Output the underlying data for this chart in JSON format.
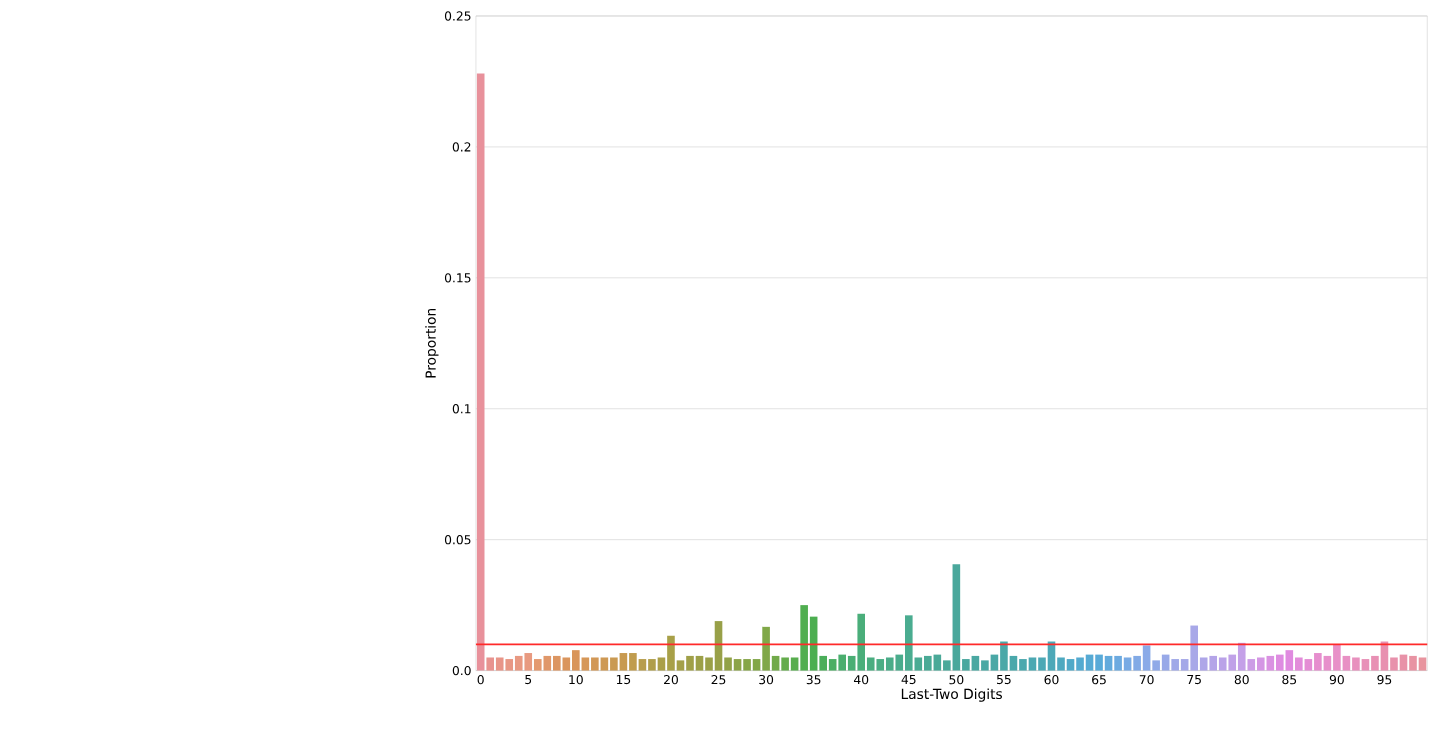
{
  "chart_data": {
    "type": "bar",
    "xlabel": "Last-Two Digits",
    "ylabel": "Proportion",
    "categories": [
      "0",
      null,
      null,
      null,
      null,
      "5",
      null,
      null,
      null,
      null,
      "10",
      null,
      null,
      null,
      null,
      "15",
      null,
      null,
      null,
      null,
      "20",
      null,
      null,
      null,
      null,
      "25",
      null,
      null,
      null,
      null,
      "30",
      null,
      null,
      null,
      null,
      "35",
      null,
      null,
      null,
      null,
      "40",
      null,
      null,
      null,
      null,
      "45",
      null,
      null,
      null,
      null,
      "50",
      null,
      null,
      null,
      null,
      "55",
      null,
      null,
      null,
      null,
      "60",
      null,
      null,
      null,
      null,
      "65",
      null,
      null,
      null,
      null,
      "70",
      null,
      null,
      null,
      null,
      "75",
      null,
      null,
      null,
      null,
      "80",
      null,
      null,
      null,
      null,
      "85",
      null,
      null,
      null,
      null,
      "90",
      null,
      null,
      null,
      null,
      "95",
      null,
      null,
      null,
      null
    ],
    "values": [
      0.228,
      0.005,
      0.005,
      0.0044,
      0.0056,
      0.0067,
      0.0044,
      0.0056,
      0.0056,
      0.005,
      0.0078,
      0.005,
      0.005,
      0.005,
      0.005,
      0.0067,
      0.0067,
      0.0044,
      0.0044,
      0.005,
      0.0133,
      0.0039,
      0.0056,
      0.0056,
      0.005,
      0.0189,
      0.005,
      0.0044,
      0.0044,
      0.0044,
      0.0167,
      0.0056,
      0.005,
      0.005,
      0.025,
      0.0206,
      0.0056,
      0.0044,
      0.0061,
      0.0056,
      0.0217,
      0.005,
      0.0044,
      0.005,
      0.0061,
      0.0211,
      0.005,
      0.0056,
      0.0061,
      0.0039,
      0.0406,
      0.0044,
      0.0056,
      0.0039,
      0.0061,
      0.0111,
      0.0056,
      0.0044,
      0.005,
      0.005,
      0.0111,
      0.005,
      0.0044,
      0.005,
      0.0061,
      0.0061,
      0.0056,
      0.0056,
      0.005,
      0.0056,
      0.0096,
      0.0039,
      0.0061,
      0.0044,
      0.0044,
      0.0172,
      0.005,
      0.0056,
      0.005,
      0.0061,
      0.0106,
      0.0044,
      0.005,
      0.0056,
      0.0061,
      0.0078,
      0.005,
      0.0044,
      0.0067,
      0.0056,
      0.01,
      0.0056,
      0.005,
      0.0044,
      0.0056,
      0.0111,
      0.005,
      0.0061,
      0.0056,
      0.005
    ],
    "colors": [
      "#e8919b",
      "#e8938f",
      "#e89588",
      "#e89784",
      "#e89982",
      "#e89a80",
      "#e4996f",
      "#e0986a",
      "#dc9662",
      "#da955d",
      "#d9955a",
      "#d69758",
      "#d29856",
      "#ce9954",
      "#ca9a52",
      "#c89a50",
      "#c09c4e",
      "#b89d4c",
      "#b09e4a",
      "#aa9f49",
      "#a8a048",
      "#a4a048",
      "#a0a048",
      "#9ca048",
      "#9aa048",
      "#98a048",
      "#92a248",
      "#8ca448",
      "#86a648",
      "#82a748",
      "#80a848",
      "#72aa4a",
      "#64ac4c",
      "#58ad4e",
      "#50ae50",
      "#4cae50",
      "#4bae5a",
      "#4bae64",
      "#4aae6e",
      "#4aae74",
      "#4aae7a",
      "#4aad80",
      "#4aad84",
      "#4aac88",
      "#4aac8c",
      "#4aac90",
      "#4aab93",
      "#4aaa96",
      "#4aa998",
      "#4aa99a",
      "#4aa89c",
      "#4aa89f",
      "#4aa8a2",
      "#4aa8a4",
      "#4aa8a6",
      "#4aa8a8",
      "#4aa8ab",
      "#4ba8ae",
      "#4ba8b2",
      "#4ca8b5",
      "#4ca8b8",
      "#4ea9c0",
      "#50a9c8",
      "#54aad0",
      "#56aad4",
      "#58aad8",
      "#62aadc",
      "#6caae0",
      "#78aae4",
      "#82aae6",
      "#8aaae8",
      "#90aae8",
      "#98a9e8",
      "#a0a9e8",
      "#a4a8e8",
      "#a8a8e8",
      "#aea6e8",
      "#b4a4e8",
      "#baa2e8",
      "#c0a1e8",
      "#c4a0e8",
      "#cc9ce6",
      "#d496e4",
      "#da92e2",
      "#de8ce1",
      "#e08ae0",
      "#e28cda",
      "#e48dd4",
      "#e68ece",
      "#e78fcb",
      "#e890c8",
      "#e890c4",
      "#e890be",
      "#e890b8",
      "#e890b4",
      "#e890b0",
      "#e891ac",
      "#e892a8",
      "#e893a3",
      "#e8949e"
    ],
    "ylim": [
      0,
      0.25
    ],
    "yticks": [
      {
        "value": 0,
        "label": "0.0"
      },
      0.05,
      0.1,
      0.15,
      0.2,
      0.25
    ],
    "grid": "y",
    "ref_lines": [
      {
        "axis": "y",
        "value": 0.01,
        "color": "#ff2a2a"
      }
    ]
  }
}
